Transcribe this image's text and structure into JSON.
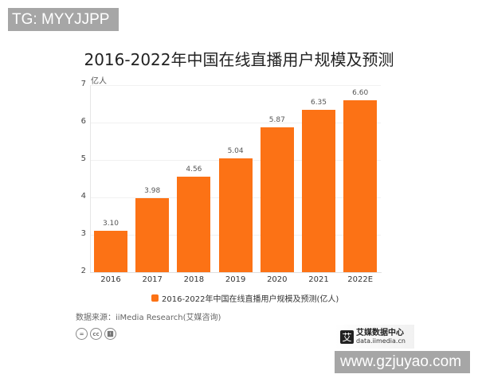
{
  "watermark_top": "TG: MYYJJPP",
  "watermark_bottom": "www.gzjuyao.com",
  "chart_data": {
    "type": "bar",
    "title": "2016-2022年中国在线直播用户规模及预测",
    "xlabel": "",
    "ylabel": "亿人",
    "ylim": [
      2,
      7
    ],
    "yticks": [
      "2",
      "3",
      "4",
      "5",
      "6",
      "7"
    ],
    "grid": true,
    "legend_position": "bottom",
    "categories": [
      "2016",
      "2017",
      "2018",
      "2019",
      "2020",
      "2021",
      "2022E"
    ],
    "series": [
      {
        "name": "2016-2022年中国在线直播用户规模及预测(亿人)",
        "color": "#fc7215",
        "values": [
          3.1,
          3.98,
          4.56,
          5.04,
          5.87,
          6.35,
          6.6
        ],
        "labels": [
          "3.10",
          "3.98",
          "4.56",
          "5.04",
          "5.87",
          "6.35",
          "6.60"
        ]
      }
    ]
  },
  "source": "数据来源：iiMedia Research(艾媒咨询)",
  "license_icons": [
    "=",
    "cc",
    "person"
  ],
  "logo": {
    "mark": "艾",
    "name": "艾媒数据中心",
    "url": "data.iimedia.cn"
  }
}
